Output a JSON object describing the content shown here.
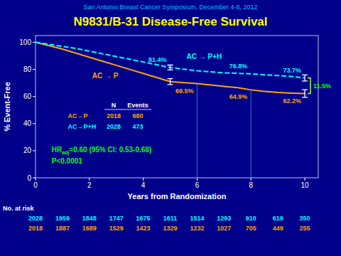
{
  "chart_data": {
    "type": "line",
    "title": "N9831/B-31 Disease-Free Survival",
    "subtitle": "San Antonio Breast Cancer Symposium,  December 4-8, 2012",
    "x_label": "Years from Randomization",
    "y_label": "% Event-Free",
    "xlim": [
      0,
      10.5
    ],
    "ylim": [
      0,
      105
    ],
    "xticks": [
      0,
      2,
      4,
      6,
      8,
      10
    ],
    "yticks": [
      0,
      20,
      40,
      60,
      80,
      100
    ],
    "grid": false,
    "series": [
      {
        "name": "AC → P",
        "color": "#FFA500",
        "line_style": "solid",
        "x": [
          0,
          0.5,
          1,
          1.5,
          2,
          2.5,
          3,
          3.5,
          4,
          4.5,
          5,
          5.5,
          6,
          6.5,
          7,
          7.5,
          8,
          8.5,
          9,
          9.5,
          10
        ],
        "values": [
          100,
          97.5,
          95,
          92,
          89,
          86,
          83,
          80,
          77,
          74,
          71,
          70.2,
          69.5,
          68.5,
          67.5,
          66.5,
          64.9,
          63.8,
          63,
          62.5,
          62.2
        ]
      },
      {
        "name": "AC → P+H",
        "color": "#00FFFF",
        "line_style": "dashed",
        "x": [
          0,
          0.5,
          1,
          1.5,
          2,
          2.5,
          3,
          3.5,
          4,
          4.5,
          5,
          5.5,
          6,
          6.5,
          7,
          7.5,
          8,
          8.5,
          9,
          9.5,
          10
        ],
        "values": [
          100,
          98.5,
          97,
          95.5,
          93.5,
          91.5,
          89.5,
          87.5,
          85.5,
          83.5,
          81.4,
          80.2,
          79,
          78.2,
          77.5,
          77.1,
          76.8,
          76,
          75.5,
          74.8,
          73.7
        ]
      }
    ],
    "error_bars": [
      {
        "x": 5.0,
        "value": 71.0,
        "error": 2.2
      },
      {
        "x": 5.0,
        "value": 81.4,
        "error": 1.8
      },
      {
        "x": 10.0,
        "value": 62.2,
        "error": 2.8
      },
      {
        "x": 10.0,
        "value": 73.7,
        "error": 2.2
      }
    ],
    "difference": {
      "x": 10.0,
      "low": 62.2,
      "high": 73.7,
      "label": "11.5%"
    },
    "annotations": [
      {
        "label": "81.4%",
        "x": 5,
        "value": 81.4,
        "color": "#00FFFF"
      },
      {
        "label": "69.5%",
        "x": 6,
        "value": 69.5,
        "color": "#FFA500"
      },
      {
        "label": "76.8%",
        "x": 8,
        "value": 76.8,
        "color": "#00FFFF"
      },
      {
        "label": "64.9%",
        "x": 8,
        "value": 64.9,
        "color": "#FFA500"
      },
      {
        "label": "73.7%",
        "x": 10,
        "value": 73.7,
        "color": "#00FFFF"
      },
      {
        "label": "62.2%",
        "x": 10,
        "value": 62.2,
        "color": "#FFA500"
      }
    ],
    "reference_lines": [
      {
        "x": 6,
        "value": 69.5
      },
      {
        "x": 8,
        "value": 64.9
      }
    ],
    "table": {
      "columns": [
        "N",
        "Events"
      ],
      "rows": [
        {
          "label": "AC→P",
          "color": "#FFA500",
          "values": [
            2018,
            680
          ]
        },
        {
          "label": "AC→P+H",
          "color": "#00FFFF",
          "values": [
            2028,
            473
          ]
        }
      ]
    },
    "hazard_ratio": {
      "label": "HR",
      "subscript": "adj",
      "text": "=0.60 (95% CI: 0.53-0.68)"
    },
    "p_text": "P<0.0001",
    "at_risk": {
      "label": "No. at risk",
      "x": [
        0,
        1,
        2,
        3,
        4,
        5,
        6,
        7,
        8,
        9,
        10
      ],
      "rows": [
        {
          "color": "#00FFFF",
          "values": [
            2028,
            1959,
            1848,
            1747,
            1675,
            1611,
            1514,
            1293,
            910,
            619,
            350
          ]
        },
        {
          "color": "#FFA500",
          "values": [
            2018,
            1887,
            1689,
            1529,
            1423,
            1329,
            1232,
            1027,
            705,
            449,
            255
          ]
        }
      ]
    }
  }
}
